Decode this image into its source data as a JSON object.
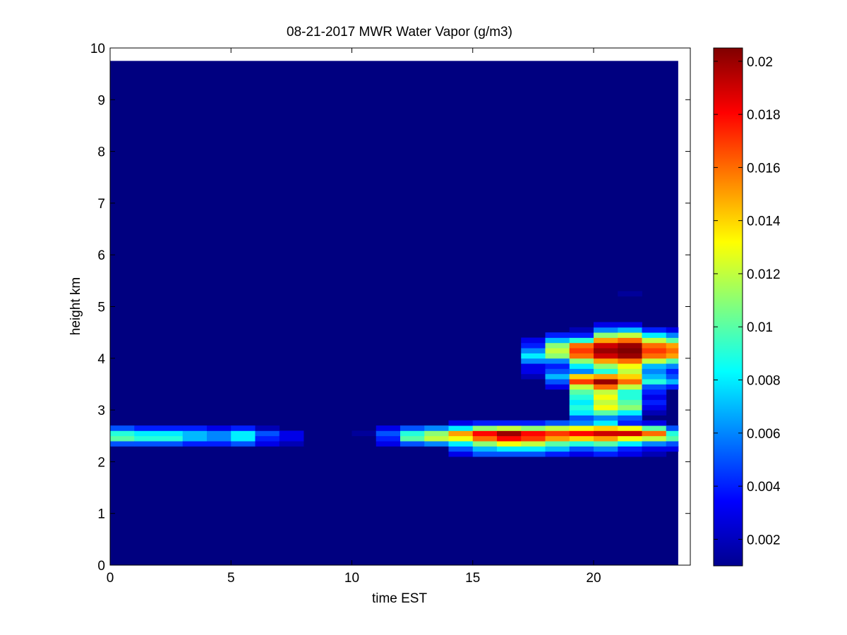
{
  "chart_data": {
    "type": "heatmap",
    "title": "08-21-2017 MWR Water Vapor (g/m3)",
    "xlabel": "time EST",
    "ylabel": "height km",
    "xlim": [
      0,
      24
    ],
    "ylim": [
      0,
      10
    ],
    "x_ticks": [
      "0",
      "5",
      "10",
      "15",
      "20"
    ],
    "y_ticks": [
      "0",
      "1",
      "2",
      "3",
      "4",
      "5",
      "6",
      "7",
      "8",
      "9",
      "10"
    ],
    "data_extent": {
      "x": [
        0,
        23.5
      ],
      "y": [
        0,
        9.75
      ]
    },
    "colormap": "jet",
    "background_value": 0.001,
    "colorbar": {
      "range": [
        0.001,
        0.0205
      ],
      "tick_labels": [
        "0.002",
        "0.004",
        "0.006",
        "0.008",
        "0.01",
        "0.012",
        "0.014",
        "0.016",
        "0.018",
        "0.02"
      ],
      "tick_values": [
        0.002,
        0.004,
        0.006,
        0.008,
        0.01,
        0.012,
        0.014,
        0.016,
        0.018,
        0.02
      ]
    },
    "x_bins": [
      0,
      1,
      2,
      3,
      4,
      5,
      6,
      7,
      8,
      9,
      10,
      11,
      12,
      13,
      14,
      15,
      16,
      17,
      18,
      19,
      20,
      21,
      22,
      23
    ],
    "y_bins": [
      2.1,
      2.2,
      2.3,
      2.4,
      2.5,
      2.6,
      2.7,
      2.8,
      2.9,
      3.0,
      3.1,
      3.2,
      3.3,
      3.4,
      3.5,
      3.6,
      3.7,
      3.8,
      3.9,
      4.0,
      4.1,
      4.2,
      4.3,
      4.4,
      4.5,
      4.6,
      5.2
    ],
    "cells": [
      {
        "x": 0,
        "y": 2.3,
        "v": 0.005
      },
      {
        "x": 0,
        "y": 2.4,
        "v": 0.01
      },
      {
        "x": 0,
        "y": 2.5,
        "v": 0.009
      },
      {
        "x": 0,
        "y": 2.6,
        "v": 0.005
      },
      {
        "x": 1,
        "y": 2.3,
        "v": 0.005
      },
      {
        "x": 1,
        "y": 2.4,
        "v": 0.009
      },
      {
        "x": 1,
        "y": 2.5,
        "v": 0.008
      },
      {
        "x": 1,
        "y": 2.6,
        "v": 0.004
      },
      {
        "x": 2,
        "y": 2.3,
        "v": 0.005
      },
      {
        "x": 2,
        "y": 2.4,
        "v": 0.009
      },
      {
        "x": 2,
        "y": 2.5,
        "v": 0.008
      },
      {
        "x": 2,
        "y": 2.6,
        "v": 0.004
      },
      {
        "x": 3,
        "y": 2.3,
        "v": 0.004
      },
      {
        "x": 3,
        "y": 2.4,
        "v": 0.007
      },
      {
        "x": 3,
        "y": 2.5,
        "v": 0.007
      },
      {
        "x": 3,
        "y": 2.6,
        "v": 0.004
      },
      {
        "x": 4,
        "y": 2.3,
        "v": 0.004
      },
      {
        "x": 4,
        "y": 2.4,
        "v": 0.006
      },
      {
        "x": 4,
        "y": 2.5,
        "v": 0.006
      },
      {
        "x": 4,
        "y": 2.6,
        "v": 0.003
      },
      {
        "x": 5,
        "y": 2.3,
        "v": 0.005
      },
      {
        "x": 5,
        "y": 2.4,
        "v": 0.008
      },
      {
        "x": 5,
        "y": 2.5,
        "v": 0.008
      },
      {
        "x": 5,
        "y": 2.6,
        "v": 0.004
      },
      {
        "x": 6,
        "y": 2.3,
        "v": 0.003
      },
      {
        "x": 6,
        "y": 2.4,
        "v": 0.004
      },
      {
        "x": 6,
        "y": 2.5,
        "v": 0.005
      },
      {
        "x": 6,
        "y": 2.6,
        "v": 0.002
      },
      {
        "x": 7,
        "y": 2.3,
        "v": 0.002
      },
      {
        "x": 7,
        "y": 2.4,
        "v": 0.003
      },
      {
        "x": 7,
        "y": 2.5,
        "v": 0.003
      },
      {
        "x": 10,
        "y": 2.5,
        "v": 0.0015
      },
      {
        "x": 11,
        "y": 2.3,
        "v": 0.003
      },
      {
        "x": 11,
        "y": 2.4,
        "v": 0.004
      },
      {
        "x": 11,
        "y": 2.5,
        "v": 0.005
      },
      {
        "x": 11,
        "y": 2.6,
        "v": 0.003
      },
      {
        "x": 12,
        "y": 2.3,
        "v": 0.005
      },
      {
        "x": 12,
        "y": 2.4,
        "v": 0.01
      },
      {
        "x": 12,
        "y": 2.5,
        "v": 0.009
      },
      {
        "x": 12,
        "y": 2.6,
        "v": 0.005
      },
      {
        "x": 13,
        "y": 2.3,
        "v": 0.006
      },
      {
        "x": 13,
        "y": 2.4,
        "v": 0.012
      },
      {
        "x": 13,
        "y": 2.5,
        "v": 0.011
      },
      {
        "x": 13,
        "y": 2.6,
        "v": 0.006
      },
      {
        "x": 14,
        "y": 2.1,
        "v": 0.003
      },
      {
        "x": 14,
        "y": 2.2,
        "v": 0.005
      },
      {
        "x": 14,
        "y": 2.3,
        "v": 0.008
      },
      {
        "x": 14,
        "y": 2.4,
        "v": 0.013
      },
      {
        "x": 14,
        "y": 2.5,
        "v": 0.015
      },
      {
        "x": 14,
        "y": 2.6,
        "v": 0.008
      },
      {
        "x": 14,
        "y": 2.7,
        "v": 0.003
      },
      {
        "x": 15,
        "y": 2.1,
        "v": 0.005
      },
      {
        "x": 15,
        "y": 2.2,
        "v": 0.007
      },
      {
        "x": 15,
        "y": 2.3,
        "v": 0.011
      },
      {
        "x": 15,
        "y": 2.4,
        "v": 0.016
      },
      {
        "x": 15,
        "y": 2.5,
        "v": 0.018
      },
      {
        "x": 15,
        "y": 2.6,
        "v": 0.011
      },
      {
        "x": 15,
        "y": 2.7,
        "v": 0.004
      },
      {
        "x": 16,
        "y": 2.1,
        "v": 0.005
      },
      {
        "x": 16,
        "y": 2.2,
        "v": 0.008
      },
      {
        "x": 16,
        "y": 2.3,
        "v": 0.013
      },
      {
        "x": 16,
        "y": 2.4,
        "v": 0.018
      },
      {
        "x": 16,
        "y": 2.5,
        "v": 0.02
      },
      {
        "x": 16,
        "y": 2.6,
        "v": 0.012
      },
      {
        "x": 16,
        "y": 2.7,
        "v": 0.004
      },
      {
        "x": 17,
        "y": 2.1,
        "v": 0.005
      },
      {
        "x": 17,
        "y": 2.2,
        "v": 0.008
      },
      {
        "x": 17,
        "y": 2.3,
        "v": 0.012
      },
      {
        "x": 17,
        "y": 2.4,
        "v": 0.017
      },
      {
        "x": 17,
        "y": 2.5,
        "v": 0.018
      },
      {
        "x": 17,
        "y": 2.6,
        "v": 0.011
      },
      {
        "x": 17,
        "y": 2.7,
        "v": 0.004
      },
      {
        "x": 17,
        "y": 3.6,
        "v": 0.002
      },
      {
        "x": 17,
        "y": 3.7,
        "v": 0.003
      },
      {
        "x": 17,
        "y": 3.8,
        "v": 0.003
      },
      {
        "x": 17,
        "y": 3.9,
        "v": 0.006
      },
      {
        "x": 17,
        "y": 4.0,
        "v": 0.008
      },
      {
        "x": 17,
        "y": 4.1,
        "v": 0.006
      },
      {
        "x": 17,
        "y": 4.2,
        "v": 0.004
      },
      {
        "x": 17,
        "y": 4.3,
        "v": 0.003
      },
      {
        "x": 18,
        "y": 2.1,
        "v": 0.004
      },
      {
        "x": 18,
        "y": 2.2,
        "v": 0.007
      },
      {
        "x": 18,
        "y": 2.3,
        "v": 0.01
      },
      {
        "x": 18,
        "y": 2.4,
        "v": 0.015
      },
      {
        "x": 18,
        "y": 2.5,
        "v": 0.017
      },
      {
        "x": 18,
        "y": 2.6,
        "v": 0.012
      },
      {
        "x": 18,
        "y": 2.7,
        "v": 0.005
      },
      {
        "x": 18,
        "y": 3.4,
        "v": 0.003
      },
      {
        "x": 18,
        "y": 3.5,
        "v": 0.005
      },
      {
        "x": 18,
        "y": 3.6,
        "v": 0.007
      },
      {
        "x": 18,
        "y": 3.7,
        "v": 0.005
      },
      {
        "x": 18,
        "y": 3.8,
        "v": 0.004
      },
      {
        "x": 18,
        "y": 3.9,
        "v": 0.006
      },
      {
        "x": 18,
        "y": 4.0,
        "v": 0.011
      },
      {
        "x": 18,
        "y": 4.1,
        "v": 0.012
      },
      {
        "x": 18,
        "y": 4.2,
        "v": 0.011
      },
      {
        "x": 18,
        "y": 4.3,
        "v": 0.007
      },
      {
        "x": 18,
        "y": 4.4,
        "v": 0.004
      },
      {
        "x": 19,
        "y": 2.1,
        "v": 0.003
      },
      {
        "x": 19,
        "y": 2.2,
        "v": 0.005
      },
      {
        "x": 19,
        "y": 2.3,
        "v": 0.009
      },
      {
        "x": 19,
        "y": 2.4,
        "v": 0.014
      },
      {
        "x": 19,
        "y": 2.5,
        "v": 0.018
      },
      {
        "x": 19,
        "y": 2.6,
        "v": 0.013
      },
      {
        "x": 19,
        "y": 2.7,
        "v": 0.006
      },
      {
        "x": 19,
        "y": 2.8,
        "v": 0.005
      },
      {
        "x": 19,
        "y": 2.9,
        "v": 0.008
      },
      {
        "x": 19,
        "y": 3.0,
        "v": 0.009
      },
      {
        "x": 19,
        "y": 3.1,
        "v": 0.008
      },
      {
        "x": 19,
        "y": 3.2,
        "v": 0.009
      },
      {
        "x": 19,
        "y": 3.3,
        "v": 0.01
      },
      {
        "x": 19,
        "y": 3.4,
        "v": 0.012
      },
      {
        "x": 19,
        "y": 3.5,
        "v": 0.017
      },
      {
        "x": 19,
        "y": 3.6,
        "v": 0.014
      },
      {
        "x": 19,
        "y": 3.7,
        "v": 0.006
      },
      {
        "x": 19,
        "y": 3.8,
        "v": 0.008
      },
      {
        "x": 19,
        "y": 3.9,
        "v": 0.011
      },
      {
        "x": 19,
        "y": 4.0,
        "v": 0.016
      },
      {
        "x": 19,
        "y": 4.1,
        "v": 0.017
      },
      {
        "x": 19,
        "y": 4.2,
        "v": 0.016
      },
      {
        "x": 19,
        "y": 4.3,
        "v": 0.009
      },
      {
        "x": 19,
        "y": 4.4,
        "v": 0.004
      },
      {
        "x": 19,
        "y": 4.5,
        "v": 0.002
      },
      {
        "x": 20,
        "y": 2.1,
        "v": 0.004
      },
      {
        "x": 20,
        "y": 2.2,
        "v": 0.006
      },
      {
        "x": 20,
        "y": 2.3,
        "v": 0.01
      },
      {
        "x": 20,
        "y": 2.4,
        "v": 0.015
      },
      {
        "x": 20,
        "y": 2.5,
        "v": 0.019
      },
      {
        "x": 20,
        "y": 2.6,
        "v": 0.014
      },
      {
        "x": 20,
        "y": 2.7,
        "v": 0.008
      },
      {
        "x": 20,
        "y": 2.8,
        "v": 0.006
      },
      {
        "x": 20,
        "y": 2.9,
        "v": 0.01
      },
      {
        "x": 20,
        "y": 3.0,
        "v": 0.013
      },
      {
        "x": 20,
        "y": 3.1,
        "v": 0.012
      },
      {
        "x": 20,
        "y": 3.2,
        "v": 0.013
      },
      {
        "x": 20,
        "y": 3.3,
        "v": 0.012
      },
      {
        "x": 20,
        "y": 3.4,
        "v": 0.016
      },
      {
        "x": 20,
        "y": 3.5,
        "v": 0.02
      },
      {
        "x": 20,
        "y": 3.6,
        "v": 0.015
      },
      {
        "x": 20,
        "y": 3.7,
        "v": 0.009
      },
      {
        "x": 20,
        "y": 3.8,
        "v": 0.011
      },
      {
        "x": 20,
        "y": 3.9,
        "v": 0.015
      },
      {
        "x": 20,
        "y": 4.0,
        "v": 0.019
      },
      {
        "x": 20,
        "y": 4.1,
        "v": 0.02
      },
      {
        "x": 20,
        "y": 4.2,
        "v": 0.019
      },
      {
        "x": 20,
        "y": 4.3,
        "v": 0.015
      },
      {
        "x": 20,
        "y": 4.4,
        "v": 0.011
      },
      {
        "x": 20,
        "y": 4.5,
        "v": 0.006
      },
      {
        "x": 20,
        "y": 4.6,
        "v": 0.003
      },
      {
        "x": 21,
        "y": 2.1,
        "v": 0.003
      },
      {
        "x": 21,
        "y": 2.2,
        "v": 0.004
      },
      {
        "x": 21,
        "y": 2.3,
        "v": 0.008
      },
      {
        "x": 21,
        "y": 2.4,
        "v": 0.013
      },
      {
        "x": 21,
        "y": 2.5,
        "v": 0.019
      },
      {
        "x": 21,
        "y": 2.6,
        "v": 0.013
      },
      {
        "x": 21,
        "y": 2.7,
        "v": 0.004
      },
      {
        "x": 21,
        "y": 2.8,
        "v": 0.005
      },
      {
        "x": 21,
        "y": 2.9,
        "v": 0.008
      },
      {
        "x": 21,
        "y": 3.0,
        "v": 0.011
      },
      {
        "x": 21,
        "y": 3.1,
        "v": 0.01
      },
      {
        "x": 21,
        "y": 3.2,
        "v": 0.009
      },
      {
        "x": 21,
        "y": 3.3,
        "v": 0.009
      },
      {
        "x": 21,
        "y": 3.4,
        "v": 0.012
      },
      {
        "x": 21,
        "y": 3.5,
        "v": 0.016
      },
      {
        "x": 21,
        "y": 3.6,
        "v": 0.014
      },
      {
        "x": 21,
        "y": 3.7,
        "v": 0.012
      },
      {
        "x": 21,
        "y": 3.8,
        "v": 0.013
      },
      {
        "x": 21,
        "y": 3.9,
        "v": 0.016
      },
      {
        "x": 21,
        "y": 4.0,
        "v": 0.02
      },
      {
        "x": 21,
        "y": 4.1,
        "v": 0.0205
      },
      {
        "x": 21,
        "y": 4.2,
        "v": 0.02
      },
      {
        "x": 21,
        "y": 4.3,
        "v": 0.016
      },
      {
        "x": 21,
        "y": 4.4,
        "v": 0.012
      },
      {
        "x": 21,
        "y": 4.5,
        "v": 0.007
      },
      {
        "x": 21,
        "y": 4.6,
        "v": 0.003
      },
      {
        "x": 21,
        "y": 5.2,
        "v": 0.0015
      },
      {
        "x": 22,
        "y": 2.1,
        "v": 0.002
      },
      {
        "x": 22,
        "y": 2.2,
        "v": 0.003
      },
      {
        "x": 22,
        "y": 2.3,
        "v": 0.006
      },
      {
        "x": 22,
        "y": 2.4,
        "v": 0.012
      },
      {
        "x": 22,
        "y": 2.5,
        "v": 0.016
      },
      {
        "x": 22,
        "y": 2.6,
        "v": 0.01
      },
      {
        "x": 22,
        "y": 2.7,
        "v": 0.003
      },
      {
        "x": 22,
        "y": 2.9,
        "v": 0.002
      },
      {
        "x": 22,
        "y": 3.0,
        "v": 0.003
      },
      {
        "x": 22,
        "y": 3.1,
        "v": 0.004
      },
      {
        "x": 22,
        "y": 3.2,
        "v": 0.003
      },
      {
        "x": 22,
        "y": 3.3,
        "v": 0.004
      },
      {
        "x": 22,
        "y": 3.4,
        "v": 0.005
      },
      {
        "x": 22,
        "y": 3.5,
        "v": 0.009
      },
      {
        "x": 22,
        "y": 3.6,
        "v": 0.007
      },
      {
        "x": 22,
        "y": 3.7,
        "v": 0.006
      },
      {
        "x": 22,
        "y": 3.8,
        "v": 0.007
      },
      {
        "x": 22,
        "y": 3.9,
        "v": 0.012
      },
      {
        "x": 22,
        "y": 4.0,
        "v": 0.016
      },
      {
        "x": 22,
        "y": 4.1,
        "v": 0.017
      },
      {
        "x": 22,
        "y": 4.2,
        "v": 0.016
      },
      {
        "x": 22,
        "y": 4.3,
        "v": 0.012
      },
      {
        "x": 22,
        "y": 4.4,
        "v": 0.008
      },
      {
        "x": 22,
        "y": 4.5,
        "v": 0.004
      },
      {
        "x": 23,
        "y": 2.2,
        "v": 0.003
      },
      {
        "x": 23,
        "y": 2.3,
        "v": 0.005
      },
      {
        "x": 23,
        "y": 2.4,
        "v": 0.01
      },
      {
        "x": 23,
        "y": 2.5,
        "v": 0.009
      },
      {
        "x": 23,
        "y": 2.6,
        "v": 0.005
      },
      {
        "x": 23,
        "y": 3.4,
        "v": 0.004
      },
      {
        "x": 23,
        "y": 3.5,
        "v": 0.007
      },
      {
        "x": 23,
        "y": 3.6,
        "v": 0.005
      },
      {
        "x": 23,
        "y": 3.7,
        "v": 0.004
      },
      {
        "x": 23,
        "y": 3.8,
        "v": 0.006
      },
      {
        "x": 23,
        "y": 3.9,
        "v": 0.01
      },
      {
        "x": 23,
        "y": 4.0,
        "v": 0.015
      },
      {
        "x": 23,
        "y": 4.1,
        "v": 0.016
      },
      {
        "x": 23,
        "y": 4.2,
        "v": 0.015
      },
      {
        "x": 23,
        "y": 4.3,
        "v": 0.01
      },
      {
        "x": 23,
        "y": 4.4,
        "v": 0.006
      },
      {
        "x": 23,
        "y": 4.5,
        "v": 0.003
      }
    ]
  }
}
